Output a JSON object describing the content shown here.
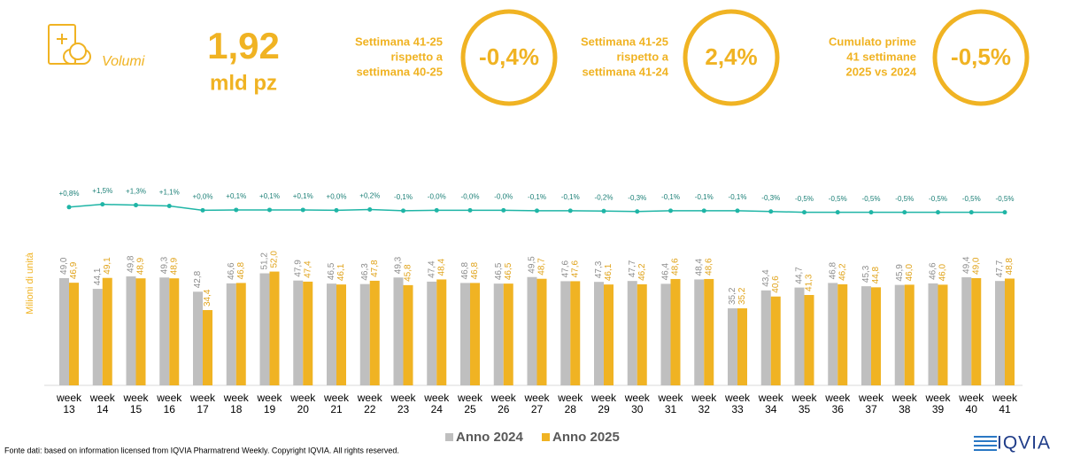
{
  "header": {
    "label": "Volumi",
    "value": "1,92",
    "unit": "mld pz"
  },
  "kpis": [
    {
      "lines": [
        "Settimana 41-25",
        "rispetto a",
        "settimana 40-25"
      ],
      "value": "-0,4%"
    },
    {
      "lines": [
        "Settimana 41-25",
        "rispetto a",
        "settimana 41-24"
      ],
      "value": "2,4%"
    },
    {
      "lines": [
        "Cumulato prime",
        "41 settimane",
        "2025 vs 2024"
      ],
      "value": "-0,5%"
    }
  ],
  "chart_data": {
    "type": "bar",
    "y_label": "Milioni di unità",
    "categories": [
      "week 13",
      "week 14",
      "week 15",
      "week 16",
      "week 17",
      "week 18",
      "week 19",
      "week 20",
      "week 21",
      "week 22",
      "week 23",
      "week 24",
      "week 25",
      "week 26",
      "week 27",
      "week 28",
      "week 29",
      "week 30",
      "week 31",
      "week 32",
      "week 33",
      "week 34",
      "week 35",
      "week 36",
      "week 37",
      "week 38",
      "week 39",
      "week 40",
      "week 41"
    ],
    "ylim": [
      0,
      100
    ],
    "y2lim": [
      -44,
      11
    ],
    "series": [
      {
        "name": "Anno 2024",
        "color": "#bfbfbf",
        "values": [
          49.0,
          44.1,
          49.8,
          49.3,
          42.8,
          46.6,
          51.2,
          47.9,
          46.5,
          46.3,
          49.3,
          47.4,
          46.8,
          46.5,
          49.5,
          47.6,
          47.3,
          47.7,
          46.4,
          48.4,
          35.2,
          43.4,
          44.7,
          46.8,
          45.3,
          45.9,
          46.6,
          49.4,
          47.7
        ],
        "value_labels": [
          "49,0",
          "44,1",
          "49,8",
          "49,3",
          "42,8",
          "46,6",
          "51,2",
          "47,9",
          "46,5",
          "46,3",
          "49,3",
          "47,4",
          "46,8",
          "46,5",
          "49,5",
          "47,6",
          "47,3",
          "47,7",
          "46,4",
          "48,4",
          "35,2",
          "43,4",
          "44,7",
          "46,8",
          "45,3",
          "45,9",
          "46,6",
          "49,4",
          "47,7"
        ]
      },
      {
        "name": "Anno 2025",
        "color": "#f0b323",
        "values": [
          46.9,
          49.1,
          48.9,
          48.9,
          34.4,
          46.8,
          52.0,
          47.4,
          46.1,
          47.8,
          45.8,
          48.4,
          46.8,
          46.5,
          48.7,
          47.6,
          46.1,
          46.2,
          48.6,
          48.6,
          35.2,
          40.6,
          41.3,
          46.2,
          44.8,
          46.0,
          46.0,
          49.0,
          48.8
        ],
        "value_labels": [
          "46,9",
          "49,1",
          "48,9",
          "48,9",
          "34,4",
          "46,8",
          "52,0",
          "47,4",
          "46,1",
          "47,8",
          "45,8",
          "48,4",
          "46,8",
          "46,5",
          "48,7",
          "47,6",
          "46,1",
          "46,2",
          "48,6",
          "48,6",
          "35,2",
          "40,6",
          "41,3",
          "46,2",
          "44,8",
          "46,0",
          "46,0",
          "49,0",
          "48,8"
        ]
      },
      {
        "type": "line",
        "axis": "y2",
        "color": "#1fb5a6",
        "values": [
          0.8,
          1.5,
          1.3,
          1.1,
          0.0,
          0.1,
          0.1,
          0.1,
          0.0,
          0.2,
          -0.1,
          -0.0,
          -0.0,
          -0.0,
          -0.1,
          -0.1,
          -0.2,
          -0.3,
          -0.1,
          -0.1,
          -0.1,
          -0.3,
          -0.5,
          -0.5,
          -0.5,
          -0.5,
          -0.5,
          -0.5,
          -0.5
        ],
        "value_labels": [
          "+0,8%",
          "+1,5%",
          "+1,3%",
          "+1,1%",
          "+0,0%",
          "+0,1%",
          "+0,1%",
          "+0,1%",
          "+0,0%",
          "+0,2%",
          "-0,1%",
          "-0,0%",
          "-0,0%",
          "-0,0%",
          "-0,1%",
          "-0,1%",
          "-0,2%",
          "-0,3%",
          "-0,1%",
          "-0,1%",
          "-0,1%",
          "-0,3%",
          "-0,5%",
          "-0,5%",
          "-0,5%",
          "-0,5%",
          "-0,5%",
          "-0,5%",
          "-0,5%"
        ]
      }
    ]
  },
  "footer": {
    "source": "Fonte dati: based on information licensed from IQVIA Pharmatrend Weekly. Copyright IQVIA. All rights reserved.",
    "logo": "IQVIA"
  }
}
